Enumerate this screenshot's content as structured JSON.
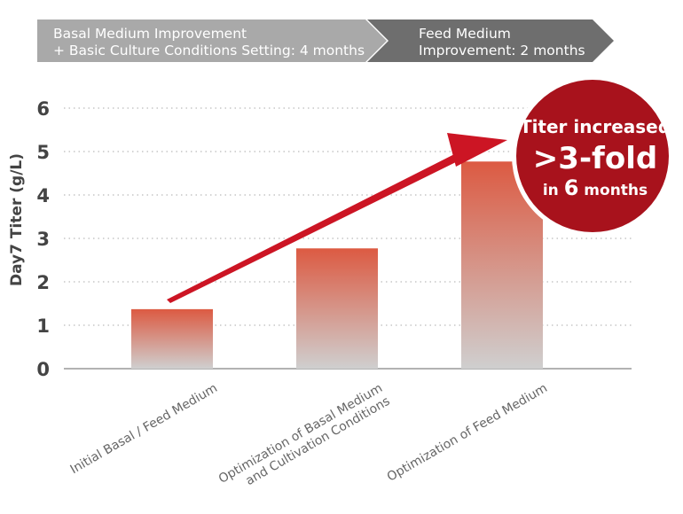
{
  "banner": {
    "phase1": {
      "line1": "Basal Medium Improvement",
      "line2": "+ Basic Culture Conditions Setting: 4 months",
      "color": "#a9a9a9"
    },
    "phase2": {
      "line1": "Feed Medium",
      "line2": "Improvement: 2 months",
      "color": "#6e6e6e"
    }
  },
  "badge": {
    "line1": "Titer increased",
    "line2": ">3-fold",
    "line3_pre": "in ",
    "line3_num": "6",
    "line3_post": " months",
    "color": "#a8121c"
  },
  "colors": {
    "bar_top": "#dc5a42",
    "bar_bottom": "#cfcfcf",
    "arrow": "#cc1524",
    "grid": "#bbbbbb"
  },
  "chart_data": {
    "type": "bar",
    "ylabel": "Day7 Titer (g/L)",
    "ylim": [
      0,
      6
    ],
    "yticks": [
      "0",
      "1",
      "2",
      "3",
      "4",
      "5",
      "6"
    ],
    "grid": "dotted horizontal",
    "categories": [
      [
        "Initial Basal / Feed Medium"
      ],
      [
        "Optimization of Basal Medium",
        "and Cultivation Conditions"
      ],
      [
        "Optimization of Feed Medium"
      ]
    ],
    "values": [
      1.37,
      2.77,
      4.77
    ]
  }
}
